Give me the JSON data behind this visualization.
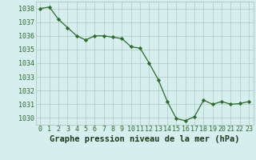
{
  "x": [
    0,
    1,
    2,
    3,
    4,
    5,
    6,
    7,
    8,
    9,
    10,
    11,
    12,
    13,
    14,
    15,
    16,
    17,
    18,
    19,
    20,
    21,
    22,
    23
  ],
  "y": [
    1038.0,
    1038.1,
    1037.2,
    1036.6,
    1036.0,
    1035.7,
    1036.0,
    1036.0,
    1035.9,
    1035.8,
    1035.2,
    1035.1,
    1034.0,
    1032.8,
    1031.2,
    1029.95,
    1029.8,
    1030.1,
    1031.3,
    1031.0,
    1031.2,
    1031.0,
    1031.05,
    1031.2
  ],
  "line_color": "#2d6a2d",
  "marker_color": "#2d6a2d",
  "bg_color": "#d6eeee",
  "grid_color": "#b8d0c8",
  "xlabel": "Graphe pression niveau de la mer (hPa)",
  "xlabel_color": "#1a3a1a",
  "axis_label_color": "#2d6a2d",
  "ylim_min": 1029.5,
  "ylim_max": 1038.5,
  "ytick_vals": [
    1030,
    1031,
    1032,
    1033,
    1034,
    1035,
    1036,
    1037,
    1038
  ],
  "xtick_labels": [
    "0",
    "1",
    "2",
    "3",
    "4",
    "5",
    "6",
    "7",
    "8",
    "9",
    "10",
    "11",
    "12",
    "13",
    "14",
    "15",
    "16",
    "17",
    "18",
    "19",
    "20",
    "21",
    "22",
    "23"
  ],
  "tick_fontsize": 6,
  "xlabel_fontsize": 7.5
}
